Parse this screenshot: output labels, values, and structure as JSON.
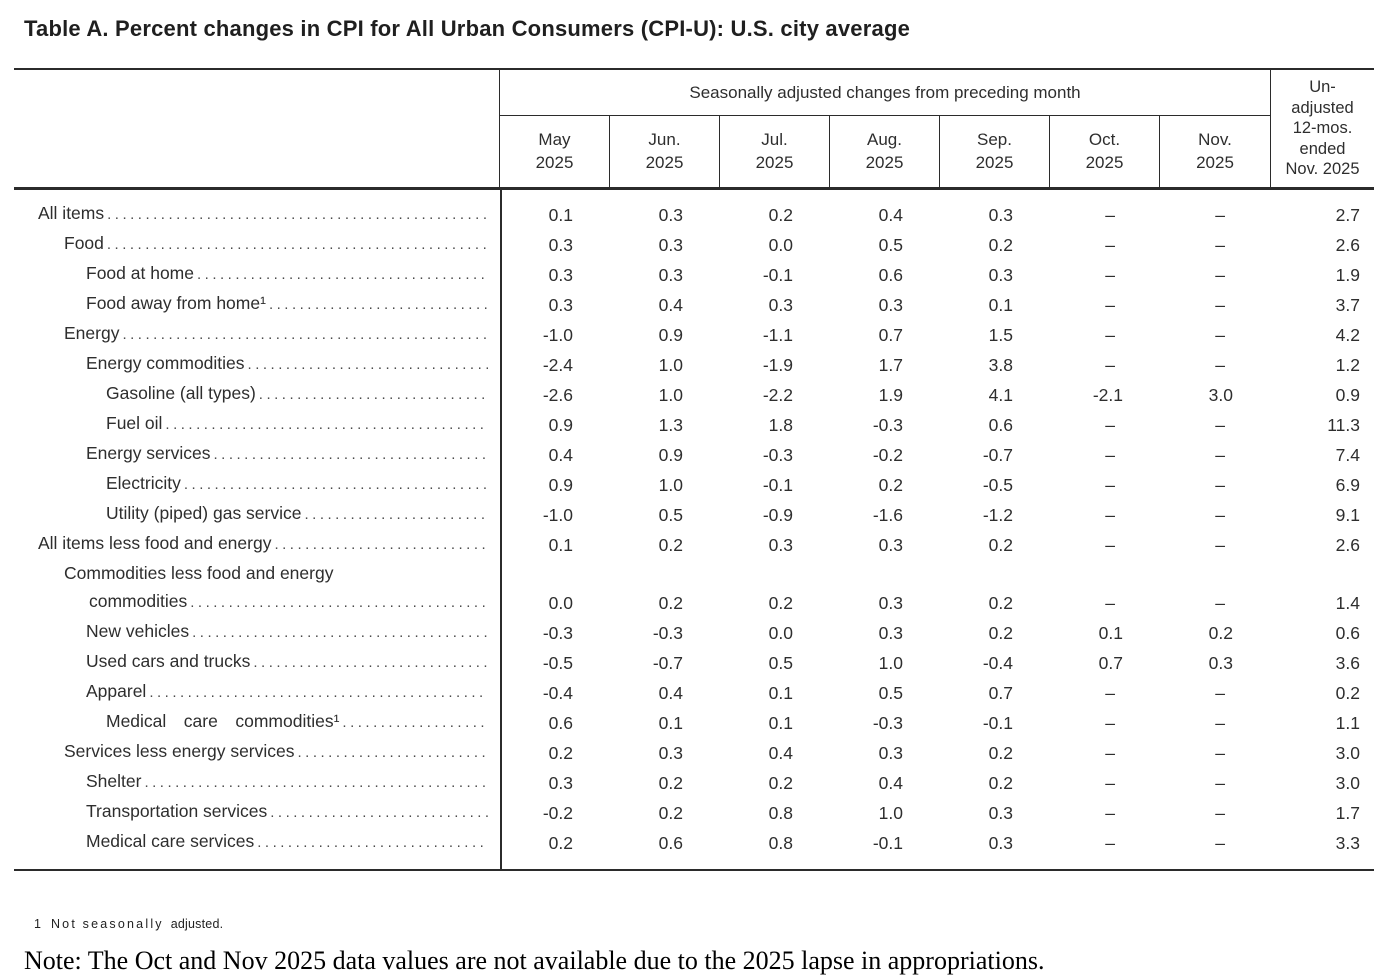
{
  "title": "Table A. Percent changes in CPI for All Urban Consumers (CPI-U): U.S. city average",
  "table": {
    "group_header": "Seasonally adjusted changes from preceding month",
    "unadjusted_header": "Un-\nadjusted\n12-mos.\nended\nNov. 2025",
    "columns": [
      "May\n2025",
      "Jun.\n2025",
      "Jul.\n2025",
      "Aug.\n2025",
      "Sep.\n2025",
      "Oct.\n2025",
      "Nov.\n2025"
    ],
    "missing_value_symbol": "–",
    "rows": [
      {
        "label": "All items",
        "indent": 0,
        "values": [
          "0.1",
          "0.3",
          "0.2",
          "0.4",
          "0.3",
          "–",
          "–",
          "2.7"
        ]
      },
      {
        "label": "Food",
        "indent": 1,
        "values": [
          "0.3",
          "0.3",
          "0.0",
          "0.5",
          "0.2",
          "–",
          "–",
          "2.6"
        ]
      },
      {
        "label": "Food at home",
        "indent": 2,
        "values": [
          "0.3",
          "0.3",
          "-0.1",
          "0.6",
          "0.3",
          "–",
          "–",
          "1.9"
        ]
      },
      {
        "label": "Food away from home¹",
        "indent": 2,
        "values": [
          "0.3",
          "0.4",
          "0.3",
          "0.3",
          "0.1",
          "–",
          "–",
          "3.7"
        ]
      },
      {
        "label": "Energy",
        "indent": 1,
        "values": [
          "-1.0",
          "0.9",
          "-1.1",
          "0.7",
          "1.5",
          "–",
          "–",
          "4.2"
        ]
      },
      {
        "label": "Energy commodities",
        "indent": 2,
        "values": [
          "-2.4",
          "1.0",
          "-1.9",
          "1.7",
          "3.8",
          "–",
          "–",
          "1.2"
        ]
      },
      {
        "label": "Gasoline (all types)",
        "indent": 3,
        "values": [
          "-2.6",
          "1.0",
          "-2.2",
          "1.9",
          "4.1",
          "-2.1",
          "3.0",
          "0.9"
        ]
      },
      {
        "label": "Fuel oil",
        "indent": 3,
        "values": [
          "0.9",
          "1.3",
          "1.8",
          "-0.3",
          "0.6",
          "–",
          "–",
          "11.3"
        ]
      },
      {
        "label": "Energy services",
        "indent": 2,
        "values": [
          "0.4",
          "0.9",
          "-0.3",
          "-0.2",
          "-0.7",
          "–",
          "–",
          "7.4"
        ]
      },
      {
        "label": "Electricity",
        "indent": 3,
        "values": [
          "0.9",
          "1.0",
          "-0.1",
          "0.2",
          "-0.5",
          "–",
          "–",
          "6.9"
        ]
      },
      {
        "label": "Utility (piped) gas service",
        "indent": 3,
        "values": [
          "-1.0",
          "0.5",
          "-0.9",
          "-1.6",
          "-1.2",
          "–",
          "–",
          "9.1"
        ]
      },
      {
        "label": "All items less food and energy",
        "indent": 0,
        "values": [
          "0.1",
          "0.2",
          "0.3",
          "0.3",
          "0.2",
          "–",
          "–",
          "2.6"
        ]
      },
      {
        "label": "Commodities less food and energy",
        "label2": "commodities",
        "indent": 1,
        "values": [
          "0.0",
          "0.2",
          "0.2",
          "0.3",
          "0.2",
          "–",
          "–",
          "1.4"
        ]
      },
      {
        "label": "New vehicles",
        "indent": 2,
        "values": [
          "-0.3",
          "-0.3",
          "0.0",
          "0.3",
          "0.2",
          "0.1",
          "0.2",
          "0.6"
        ]
      },
      {
        "label": "Used cars and trucks",
        "indent": 2,
        "values": [
          "-0.5",
          "-0.7",
          "0.5",
          "1.0",
          "-0.4",
          "0.7",
          "0.3",
          "3.6"
        ]
      },
      {
        "label": "Apparel",
        "indent": 2,
        "values": [
          "-0.4",
          "0.4",
          "0.1",
          "0.5",
          "0.7",
          "–",
          "–",
          "0.2"
        ]
      },
      {
        "label": "Medical  care  commodities¹",
        "indent": 3,
        "values": [
          "0.6",
          "0.1",
          "0.1",
          "-0.3",
          "-0.1",
          "–",
          "–",
          "1.1"
        ]
      },
      {
        "label": "Services less energy services",
        "indent": 1,
        "values": [
          "0.2",
          "0.3",
          "0.4",
          "0.3",
          "0.2",
          "–",
          "–",
          "3.0"
        ]
      },
      {
        "label": "Shelter",
        "indent": 2,
        "values": [
          "0.3",
          "0.2",
          "0.2",
          "0.4",
          "0.2",
          "–",
          "–",
          "3.0"
        ]
      },
      {
        "label": "Transportation services",
        "indent": 2,
        "values": [
          "-0.2",
          "0.2",
          "0.8",
          "1.0",
          "0.3",
          "–",
          "–",
          "1.7"
        ]
      },
      {
        "label": "Medical care services",
        "indent": 2,
        "values": [
          "0.2",
          "0.6",
          "0.8",
          "-0.1",
          "0.3",
          "–",
          "–",
          "3.3"
        ]
      }
    ]
  },
  "footnote": {
    "marker": "1",
    "spaced": "Not seasonally",
    "normal": "adjusted."
  },
  "note": "Note: The Oct and Nov 2025 data values are not available due to the 2025 lapse in appropriations."
}
